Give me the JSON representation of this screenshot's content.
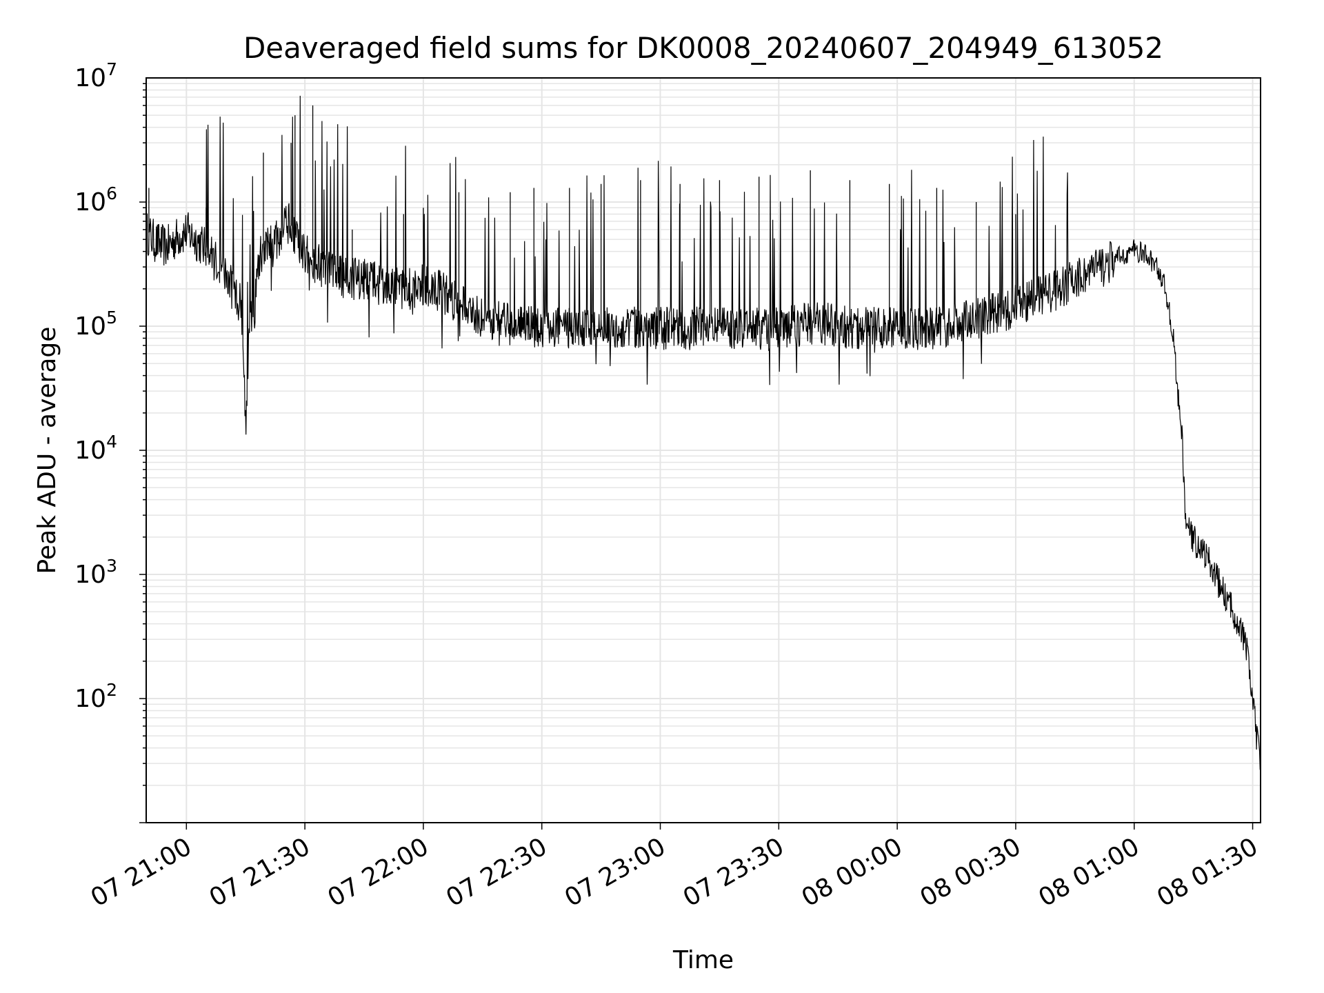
{
  "chart_data": {
    "type": "line",
    "title": "Deaveraged field sums for DK0008_20240607_204949_613052",
    "xlabel": "Time",
    "ylabel": "Peak ADU - average",
    "yscale": "log",
    "ylim": [
      10,
      10000000
    ],
    "xlim": [
      "2024-06-07 20:49:49",
      "2024-06-08 01:32:00"
    ],
    "x_tick_labels": [
      "07 21:00",
      "07 21:30",
      "07 22:00",
      "07 22:30",
      "07 23:00",
      "07 23:30",
      "08 00:00",
      "08 00:30",
      "08 01:00",
      "08 01:30"
    ],
    "x_ticks": [
      "2024-06-07 21:00",
      "2024-06-07 21:30",
      "2024-06-07 22:00",
      "2024-06-07 22:30",
      "2024-06-07 23:00",
      "2024-06-07 23:30",
      "2024-06-08 00:00",
      "2024-06-08 00:30",
      "2024-06-08 01:00",
      "2024-06-08 01:30"
    ],
    "y_ticks": [
      100,
      1000,
      10000,
      100000,
      1000000,
      10000000
    ],
    "y_tick_labels": [
      {
        "base": "10",
        "exp": "2"
      },
      {
        "base": "10",
        "exp": "3"
      },
      {
        "base": "10",
        "exp": "4"
      },
      {
        "base": "10",
        "exp": "5"
      },
      {
        "base": "10",
        "exp": "6"
      },
      {
        "base": "10",
        "exp": "7"
      }
    ],
    "grid": true,
    "line_color": "#000000",
    "grid_color": "#e5e5e5",
    "series": [
      {
        "x": [
          "2024-06-07 20:49:49",
          "2024-06-07 20:52:00",
          "2024-06-07 20:55:00",
          "2024-06-07 20:58:00",
          "2024-06-07 21:00:00",
          "2024-06-07 21:03:00",
          "2024-06-07 21:06:00",
          "2024-06-07 21:09:00",
          "2024-06-07 21:12:00",
          "2024-06-07 21:14:00",
          "2024-06-07 21:15:00",
          "2024-06-07 21:16:00",
          "2024-06-07 21:17:00",
          "2024-06-07 21:18:00",
          "2024-06-07 21:19:00",
          "2024-06-07 21:20:00",
          "2024-06-07 21:22:00",
          "2024-06-07 21:24:00",
          "2024-06-07 21:26:00",
          "2024-06-07 21:28:00",
          "2024-06-07 21:30:00",
          "2024-06-07 21:35:00",
          "2024-06-07 21:40:00",
          "2024-06-07 21:45:00",
          "2024-06-07 21:50:00",
          "2024-06-07 21:55:00",
          "2024-06-07 22:00:00",
          "2024-06-07 22:05:00",
          "2024-06-07 22:10:00",
          "2024-06-07 22:15:00",
          "2024-06-07 22:20:00",
          "2024-06-07 22:30:00",
          "2024-06-07 22:40:00",
          "2024-06-07 22:50:00",
          "2024-06-07 23:00:00",
          "2024-06-07 23:10:00",
          "2024-06-07 23:20:00",
          "2024-06-07 23:30:00",
          "2024-06-07 23:40:00",
          "2024-06-07 23:50:00",
          "2024-06-08 00:00:00",
          "2024-06-08 00:10:00",
          "2024-06-08 00:20:00",
          "2024-06-08 00:30:00",
          "2024-06-08 00:40:00",
          "2024-06-08 00:45:00",
          "2024-06-08 00:50:00",
          "2024-06-08 00:55:00",
          "2024-06-08 01:00:00",
          "2024-06-08 01:03:00",
          "2024-06-08 01:06:00",
          "2024-06-08 01:08:00",
          "2024-06-08 01:10:00",
          "2024-06-08 01:11:00",
          "2024-06-08 01:12:00",
          "2024-06-08 01:13:00",
          "2024-06-08 01:14:00",
          "2024-06-08 01:16:00",
          "2024-06-08 01:18:00",
          "2024-06-08 01:20:00",
          "2024-06-08 01:22:00",
          "2024-06-08 01:24:00",
          "2024-06-08 01:26:00",
          "2024-06-08 01:28:00",
          "2024-06-08 01:29:00",
          "2024-06-08 01:30:00",
          "2024-06-08 01:31:00",
          "2024-06-08 01:32:00"
        ],
        "y": [
          600000,
          500000,
          450000,
          550000,
          600000,
          500000,
          400000,
          300000,
          200000,
          150000,
          17000,
          120000,
          100000,
          300000,
          400000,
          500000,
          450000,
          600000,
          700000,
          500000,
          400000,
          300000,
          250000,
          250000,
          220000,
          200000,
          220000,
          200000,
          150000,
          120000,
          110000,
          100000,
          100000,
          100000,
          100000,
          100000,
          100000,
          100000,
          110000,
          100000,
          100000,
          100000,
          120000,
          150000,
          200000,
          250000,
          300000,
          350000,
          420000,
          380000,
          300000,
          200000,
          80000,
          30000,
          15000,
          3000,
          2200,
          1800,
          1500,
          1100,
          800,
          600,
          450,
          300,
          200,
          100,
          50,
          30
        ]
      }
    ],
    "spikes": [
      {
        "x": "2024-06-07 20:50:30",
        "y": 1300000
      },
      {
        "x": "2024-06-07 21:05:00",
        "y": 900000
      },
      {
        "x": "2024-06-07 21:19:30",
        "y": 2500000
      },
      {
        "x": "2024-06-07 21:26:30",
        "y": 3000000
      },
      {
        "x": "2024-06-07 21:27:30",
        "y": 5000000
      },
      {
        "x": "2024-06-07 21:32:00",
        "y": 6000000
      },
      {
        "x": "2024-06-07 21:42:00",
        "y": 600000
      },
      {
        "x": "2024-06-07 21:55:00",
        "y": 800000
      },
      {
        "x": "2024-06-07 22:00:00",
        "y": 900000
      },
      {
        "x": "2024-06-07 22:09:00",
        "y": 1200000
      },
      {
        "x": "2024-06-07 22:22:00",
        "y": 1200000
      },
      {
        "x": "2024-06-07 22:28:00",
        "y": 1300000
      },
      {
        "x": "2024-06-07 22:37:00",
        "y": 1300000
      },
      {
        "x": "2024-06-07 22:45:00",
        "y": 1400000
      },
      {
        "x": "2024-06-07 22:55:00",
        "y": 1500000
      },
      {
        "x": "2024-06-07 23:05:00",
        "y": 1400000
      },
      {
        "x": "2024-06-07 23:15:00",
        "y": 1500000
      },
      {
        "x": "2024-06-07 23:25:00",
        "y": 1600000
      },
      {
        "x": "2024-06-07 23:38:00",
        "y": 1800000
      },
      {
        "x": "2024-06-07 23:48:00",
        "y": 1500000
      },
      {
        "x": "2024-06-07 23:58:00",
        "y": 1400000
      },
      {
        "x": "2024-06-08 00:10:00",
        "y": 1300000
      },
      {
        "x": "2024-06-08 00:20:00",
        "y": 1000000
      },
      {
        "x": "2024-06-08 00:30:00",
        "y": 800000
      }
    ]
  }
}
